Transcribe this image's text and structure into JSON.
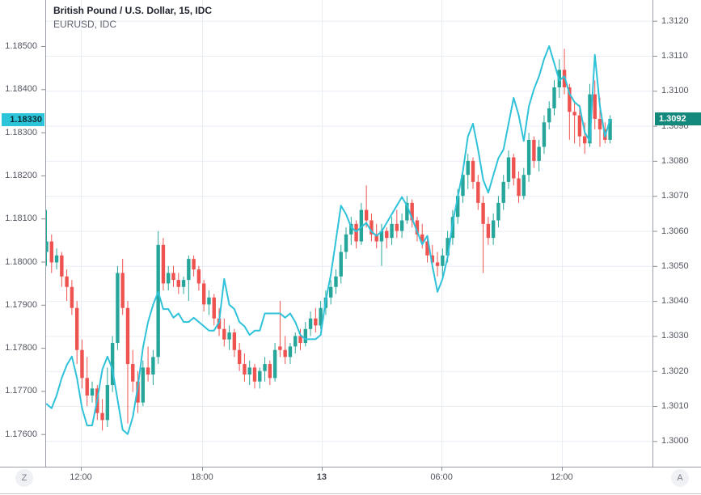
{
  "header": {
    "symbol_title": "British Pound / U.S. Dollar, 15, IDC",
    "overlay_title": "EURUSD, IDC"
  },
  "price_scales": {
    "left": {
      "labels": [
        "1.18500",
        "1.18400",
        "1.18300",
        "1.18200",
        "1.18100",
        "1.18000",
        "1.17900",
        "1.17800",
        "1.17700",
        "1.17600"
      ],
      "last_price_label": {
        "text": "1.18330",
        "bg": "#2bc4d8",
        "fg": "#0d2b33"
      }
    },
    "right": {
      "labels": [
        "1.3120",
        "1.3110",
        "1.3100",
        "1.3090",
        "1.3080",
        "1.3070",
        "1.3060",
        "1.3050",
        "1.3040",
        "1.3030",
        "1.3020",
        "1.3010",
        "1.3000"
      ],
      "last_price_label": {
        "text": "1.3092",
        "bg": "#13897c",
        "fg": "#ffffff"
      }
    }
  },
  "time_axis": {
    "labels": [
      {
        "text": "12:00",
        "index": 6.77,
        "bold": false
      },
      {
        "text": "18:00",
        "index": 30.65,
        "bold": false
      },
      {
        "text": "13",
        "index": 54.2,
        "bold": true
      },
      {
        "text": "06:00",
        "index": 77.8,
        "bold": false
      },
      {
        "text": "12:00",
        "index": 101.5,
        "bold": false
      }
    ]
  },
  "footer": {
    "left_button": "Z",
    "right_button": "A"
  },
  "colors": {
    "up": "#26a69a",
    "down": "#ef5350",
    "line": "#2fc2d9",
    "grid": "#e9eef5",
    "axis_text": "#51555f",
    "axis_border": "#9a9ea6",
    "tick_mark": "#8c909a",
    "background": "#ffffff",
    "bottom_edge": "#c8ccd3"
  },
  "chart_data": [
    {
      "type": "candlestick",
      "name": "British Pound / U.S. Dollar",
      "symbol": "GBPUSD",
      "interval_minutes": 15,
      "data_source": "IDC",
      "price_scale": "right",
      "last_price": 1.3092,
      "up_color": "#26a69a",
      "down_color": "#ef5350",
      "y_axis": {
        "min": 1.2993,
        "max": 1.3126,
        "tick_step": 0.001,
        "ticks": [
          1.312,
          1.311,
          1.31,
          1.309,
          1.308,
          1.307,
          1.306,
          1.305,
          1.304,
          1.303,
          1.302,
          1.301,
          1.3
        ]
      },
      "x_tick_labels": [
        "12:00",
        "18:00",
        "13",
        "06:00",
        "12:00"
      ],
      "grid": true,
      "ohlc": [
        [
          1.3054,
          1.3066,
          1.305,
          1.3057
        ],
        [
          1.3057,
          1.3059,
          1.3048,
          1.3051
        ],
        [
          1.3051,
          1.3055,
          1.3049,
          1.3053
        ],
        [
          1.3053,
          1.3054,
          1.3044,
          1.3047
        ],
        [
          1.3047,
          1.3049,
          1.304,
          1.3044
        ],
        [
          1.3044,
          1.3046,
          1.3036,
          1.3038
        ],
        [
          1.3038,
          1.304,
          1.3022,
          1.3026
        ],
        [
          1.3026,
          1.3029,
          1.3015,
          1.3018
        ],
        [
          1.3018,
          1.3024,
          1.301,
          1.3013
        ],
        [
          1.3013,
          1.3017,
          1.3011,
          1.3015
        ],
        [
          1.3015,
          1.3016,
          1.3006,
          1.3008
        ],
        [
          1.3008,
          1.3012,
          1.3003,
          1.3006
        ],
        [
          1.3006,
          1.3021,
          1.3004,
          1.3016
        ],
        [
          1.3016,
          1.303,
          1.3014,
          1.3028
        ],
        [
          1.3028,
          1.305,
          1.3026,
          1.3048
        ],
        [
          1.3048,
          1.3052,
          1.3036,
          1.3038
        ],
        [
          1.3038,
          1.304,
          1.3005,
          1.3022
        ],
        [
          1.3022,
          1.3026,
          1.3014,
          1.3017
        ],
        [
          1.3017,
          1.302,
          1.3008,
          1.3011
        ],
        [
          1.3011,
          1.3023,
          1.301,
          1.3021
        ],
        [
          1.3021,
          1.3027,
          1.3017,
          1.3019
        ],
        [
          1.3019,
          1.3026,
          1.3016,
          1.3024
        ],
        [
          1.3024,
          1.306,
          1.3022,
          1.3056
        ],
        [
          1.3056,
          1.3058,
          1.3043,
          1.3045
        ],
        [
          1.3045,
          1.305,
          1.3043,
          1.3048
        ],
        [
          1.3048,
          1.305,
          1.3044,
          1.3046
        ],
        [
          1.3046,
          1.3048,
          1.3042,
          1.3044
        ],
        [
          1.3044,
          1.3047,
          1.3042,
          1.3046
        ],
        [
          1.3046,
          1.3053,
          1.304,
          1.3052
        ],
        [
          1.3052,
          1.3053,
          1.3047,
          1.3049
        ],
        [
          1.3049,
          1.305,
          1.3043,
          1.3045
        ],
        [
          1.3045,
          1.3046,
          1.3037,
          1.3039
        ],
        [
          1.3039,
          1.3043,
          1.3036,
          1.3041
        ],
        [
          1.3041,
          1.3042,
          1.3033,
          1.3035
        ],
        [
          1.3035,
          1.3038,
          1.303,
          1.3032
        ],
        [
          1.3032,
          1.3035,
          1.3027,
          1.3029
        ],
        [
          1.3029,
          1.3033,
          1.3026,
          1.3031
        ],
        [
          1.3031,
          1.3032,
          1.3024,
          1.3026
        ],
        [
          1.3026,
          1.3028,
          1.302,
          1.3022
        ],
        [
          1.3022,
          1.3025,
          1.3017,
          1.3019
        ],
        [
          1.3019,
          1.3023,
          1.3016,
          1.3021
        ],
        [
          1.3021,
          1.3022,
          1.3015,
          1.3017
        ],
        [
          1.3017,
          1.3021,
          1.3015,
          1.302
        ],
        [
          1.302,
          1.3024,
          1.3017,
          1.3022
        ],
        [
          1.3022,
          1.3023,
          1.3016,
          1.3018
        ],
        [
          1.3018,
          1.3028,
          1.3017,
          1.3026
        ],
        [
          1.3027,
          1.304,
          1.3024,
          1.3026
        ],
        [
          1.3026,
          1.303,
          1.3022,
          1.3024
        ],
        [
          1.3024,
          1.3028,
          1.3022,
          1.3027
        ],
        [
          1.3027,
          1.3031,
          1.3025,
          1.303
        ],
        [
          1.303,
          1.3032,
          1.3026,
          1.3028
        ],
        [
          1.3028,
          1.3034,
          1.3027,
          1.3032
        ],
        [
          1.3032,
          1.3037,
          1.303,
          1.3035
        ],
        [
          1.3035,
          1.3038,
          1.3031,
          1.3033
        ],
        [
          1.3033,
          1.304,
          1.3032,
          1.3038
        ],
        [
          1.3038,
          1.3043,
          1.3036,
          1.3041
        ],
        [
          1.3041,
          1.3046,
          1.3039,
          1.3044
        ],
        [
          1.3044,
          1.3049,
          1.3042,
          1.3047
        ],
        [
          1.3047,
          1.3056,
          1.3045,
          1.3054
        ],
        [
          1.3054,
          1.3061,
          1.3052,
          1.3059
        ],
        [
          1.3059,
          1.3064,
          1.3056,
          1.3062
        ],
        [
          1.3062,
          1.3063,
          1.3055,
          1.3057
        ],
        [
          1.3057,
          1.3068,
          1.3056,
          1.3066
        ],
        [
          1.3066,
          1.3073,
          1.3061,
          1.3063
        ],
        [
          1.3063,
          1.3065,
          1.3057,
          1.3059
        ],
        [
          1.3059,
          1.3062,
          1.3055,
          1.3057
        ],
        [
          1.3057,
          1.3062,
          1.305,
          1.306
        ],
        [
          1.306,
          1.3061,
          1.3055,
          1.3058
        ],
        [
          1.3058,
          1.3064,
          1.3056,
          1.3062
        ],
        [
          1.3062,
          1.3066,
          1.3058,
          1.306
        ],
        [
          1.306,
          1.3065,
          1.3058,
          1.3063
        ],
        [
          1.3063,
          1.307,
          1.3062,
          1.3068
        ],
        [
          1.3068,
          1.3069,
          1.3061,
          1.3063
        ],
        [
          1.3063,
          1.3064,
          1.3057,
          1.3059
        ],
        [
          1.3059,
          1.3062,
          1.3055,
          1.3057
        ],
        [
          1.3057,
          1.3058,
          1.3051,
          1.3053
        ],
        [
          1.3053,
          1.3056,
          1.3049,
          1.3051
        ],
        [
          1.3051,
          1.3054,
          1.3047,
          1.305
        ],
        [
          1.305,
          1.3055,
          1.3047,
          1.3053
        ],
        [
          1.3053,
          1.306,
          1.3051,
          1.3058
        ],
        [
          1.3058,
          1.3066,
          1.3056,
          1.3064
        ],
        [
          1.3064,
          1.3072,
          1.3062,
          1.307
        ],
        [
          1.307,
          1.3078,
          1.3068,
          1.3076
        ],
        [
          1.3076,
          1.3082,
          1.3072,
          1.308
        ],
        [
          1.308,
          1.3081,
          1.3072,
          1.3074
        ],
        [
          1.3074,
          1.3076,
          1.3066,
          1.3068
        ],
        [
          1.3068,
          1.307,
          1.3048,
          1.3062
        ],
        [
          1.3062,
          1.3064,
          1.3056,
          1.3058
        ],
        [
          1.3058,
          1.3065,
          1.3056,
          1.3063
        ],
        [
          1.3063,
          1.307,
          1.3061,
          1.3068
        ],
        [
          1.3068,
          1.3076,
          1.3066,
          1.3074
        ],
        [
          1.3074,
          1.3083,
          1.3072,
          1.3081
        ],
        [
          1.3081,
          1.3082,
          1.3073,
          1.3075
        ],
        [
          1.3075,
          1.3077,
          1.3068,
          1.307
        ],
        [
          1.307,
          1.3078,
          1.3069,
          1.3076
        ],
        [
          1.3076,
          1.3088,
          1.3074,
          1.3086
        ],
        [
          1.3086,
          1.3087,
          1.3078,
          1.308
        ],
        [
          1.308,
          1.3086,
          1.3077,
          1.3084
        ],
        [
          1.3084,
          1.3093,
          1.3082,
          1.3091
        ],
        [
          1.3091,
          1.3097,
          1.3089,
          1.3095
        ],
        [
          1.3095,
          1.3103,
          1.3093,
          1.3101
        ],
        [
          1.3101,
          1.3109,
          1.3098,
          1.3106
        ],
        [
          1.3106,
          1.3112,
          1.3099,
          1.3101
        ],
        [
          1.3101,
          1.3102,
          1.3086,
          1.3094
        ],
        [
          1.3094,
          1.3097,
          1.3085,
          1.3093
        ],
        [
          1.3093,
          1.3096,
          1.3084,
          1.3087
        ],
        [
          1.3087,
          1.3091,
          1.3082,
          1.3085
        ],
        [
          1.3085,
          1.3102,
          1.3084,
          1.3099
        ],
        [
          1.3099,
          1.3103,
          1.3089,
          1.3092
        ],
        [
          1.3092,
          1.3098,
          1.3084,
          1.3089
        ],
        [
          1.3089,
          1.3091,
          1.3085,
          1.3086
        ],
        [
          1.3086,
          1.3093,
          1.3085,
          1.3092
        ]
      ]
    },
    {
      "type": "line",
      "name": "EURUSD",
      "data_source": "IDC",
      "price_scale": "left",
      "color": "#2fc2d9",
      "last_price": 1.1833,
      "y_axis": {
        "min": 1.1755,
        "max": 1.1853,
        "tick_step": 0.001,
        "ticks": [
          1.185,
          1.184,
          1.183,
          1.182,
          1.181,
          1.18,
          1.179,
          1.178,
          1.177,
          1.176
        ]
      },
      "values": [
        1.1767,
        1.1766,
        1.1769,
        1.1773,
        1.1776,
        1.1778,
        1.1773,
        1.1766,
        1.1762,
        1.1762,
        1.1768,
        1.1775,
        1.1778,
        1.1775,
        1.1768,
        1.1761,
        1.176,
        1.1764,
        1.1771,
        1.178,
        1.1786,
        1.179,
        1.1793,
        1.1789,
        1.1789,
        1.1787,
        1.1788,
        1.1786,
        1.1786,
        1.1787,
        1.1786,
        1.1785,
        1.1784,
        1.1784,
        1.1786,
        1.1796,
        1.179,
        1.1789,
        1.1786,
        1.1785,
        1.1783,
        1.1784,
        1.1784,
        1.1788,
        1.1788,
        1.1788,
        1.1788,
        1.1787,
        1.1788,
        1.1786,
        1.1783,
        1.1782,
        1.1782,
        1.1782,
        1.1783,
        1.1791,
        1.1797,
        1.1805,
        1.1813,
        1.1811,
        1.1808,
        1.1807,
        1.1808,
        1.1809,
        1.1807,
        1.1806,
        1.1807,
        1.1809,
        1.1811,
        1.1813,
        1.1815,
        1.1813,
        1.181,
        1.1807,
        1.1804,
        1.1806,
        1.1799,
        1.1793,
        1.1796,
        1.1801,
        1.1809,
        1.1815,
        1.1821,
        1.1829,
        1.1832,
        1.1826,
        1.1819,
        1.1816,
        1.182,
        1.1824,
        1.1826,
        1.1832,
        1.1838,
        1.1834,
        1.1828,
        1.1836,
        1.184,
        1.1843,
        1.1847,
        1.185,
        1.1846,
        1.1842,
        1.1843,
        1.1839,
        1.1837,
        1.1836,
        1.183,
        1.1828,
        1.1848,
        1.1836,
        1.1829,
        1.1833
      ]
    }
  ]
}
